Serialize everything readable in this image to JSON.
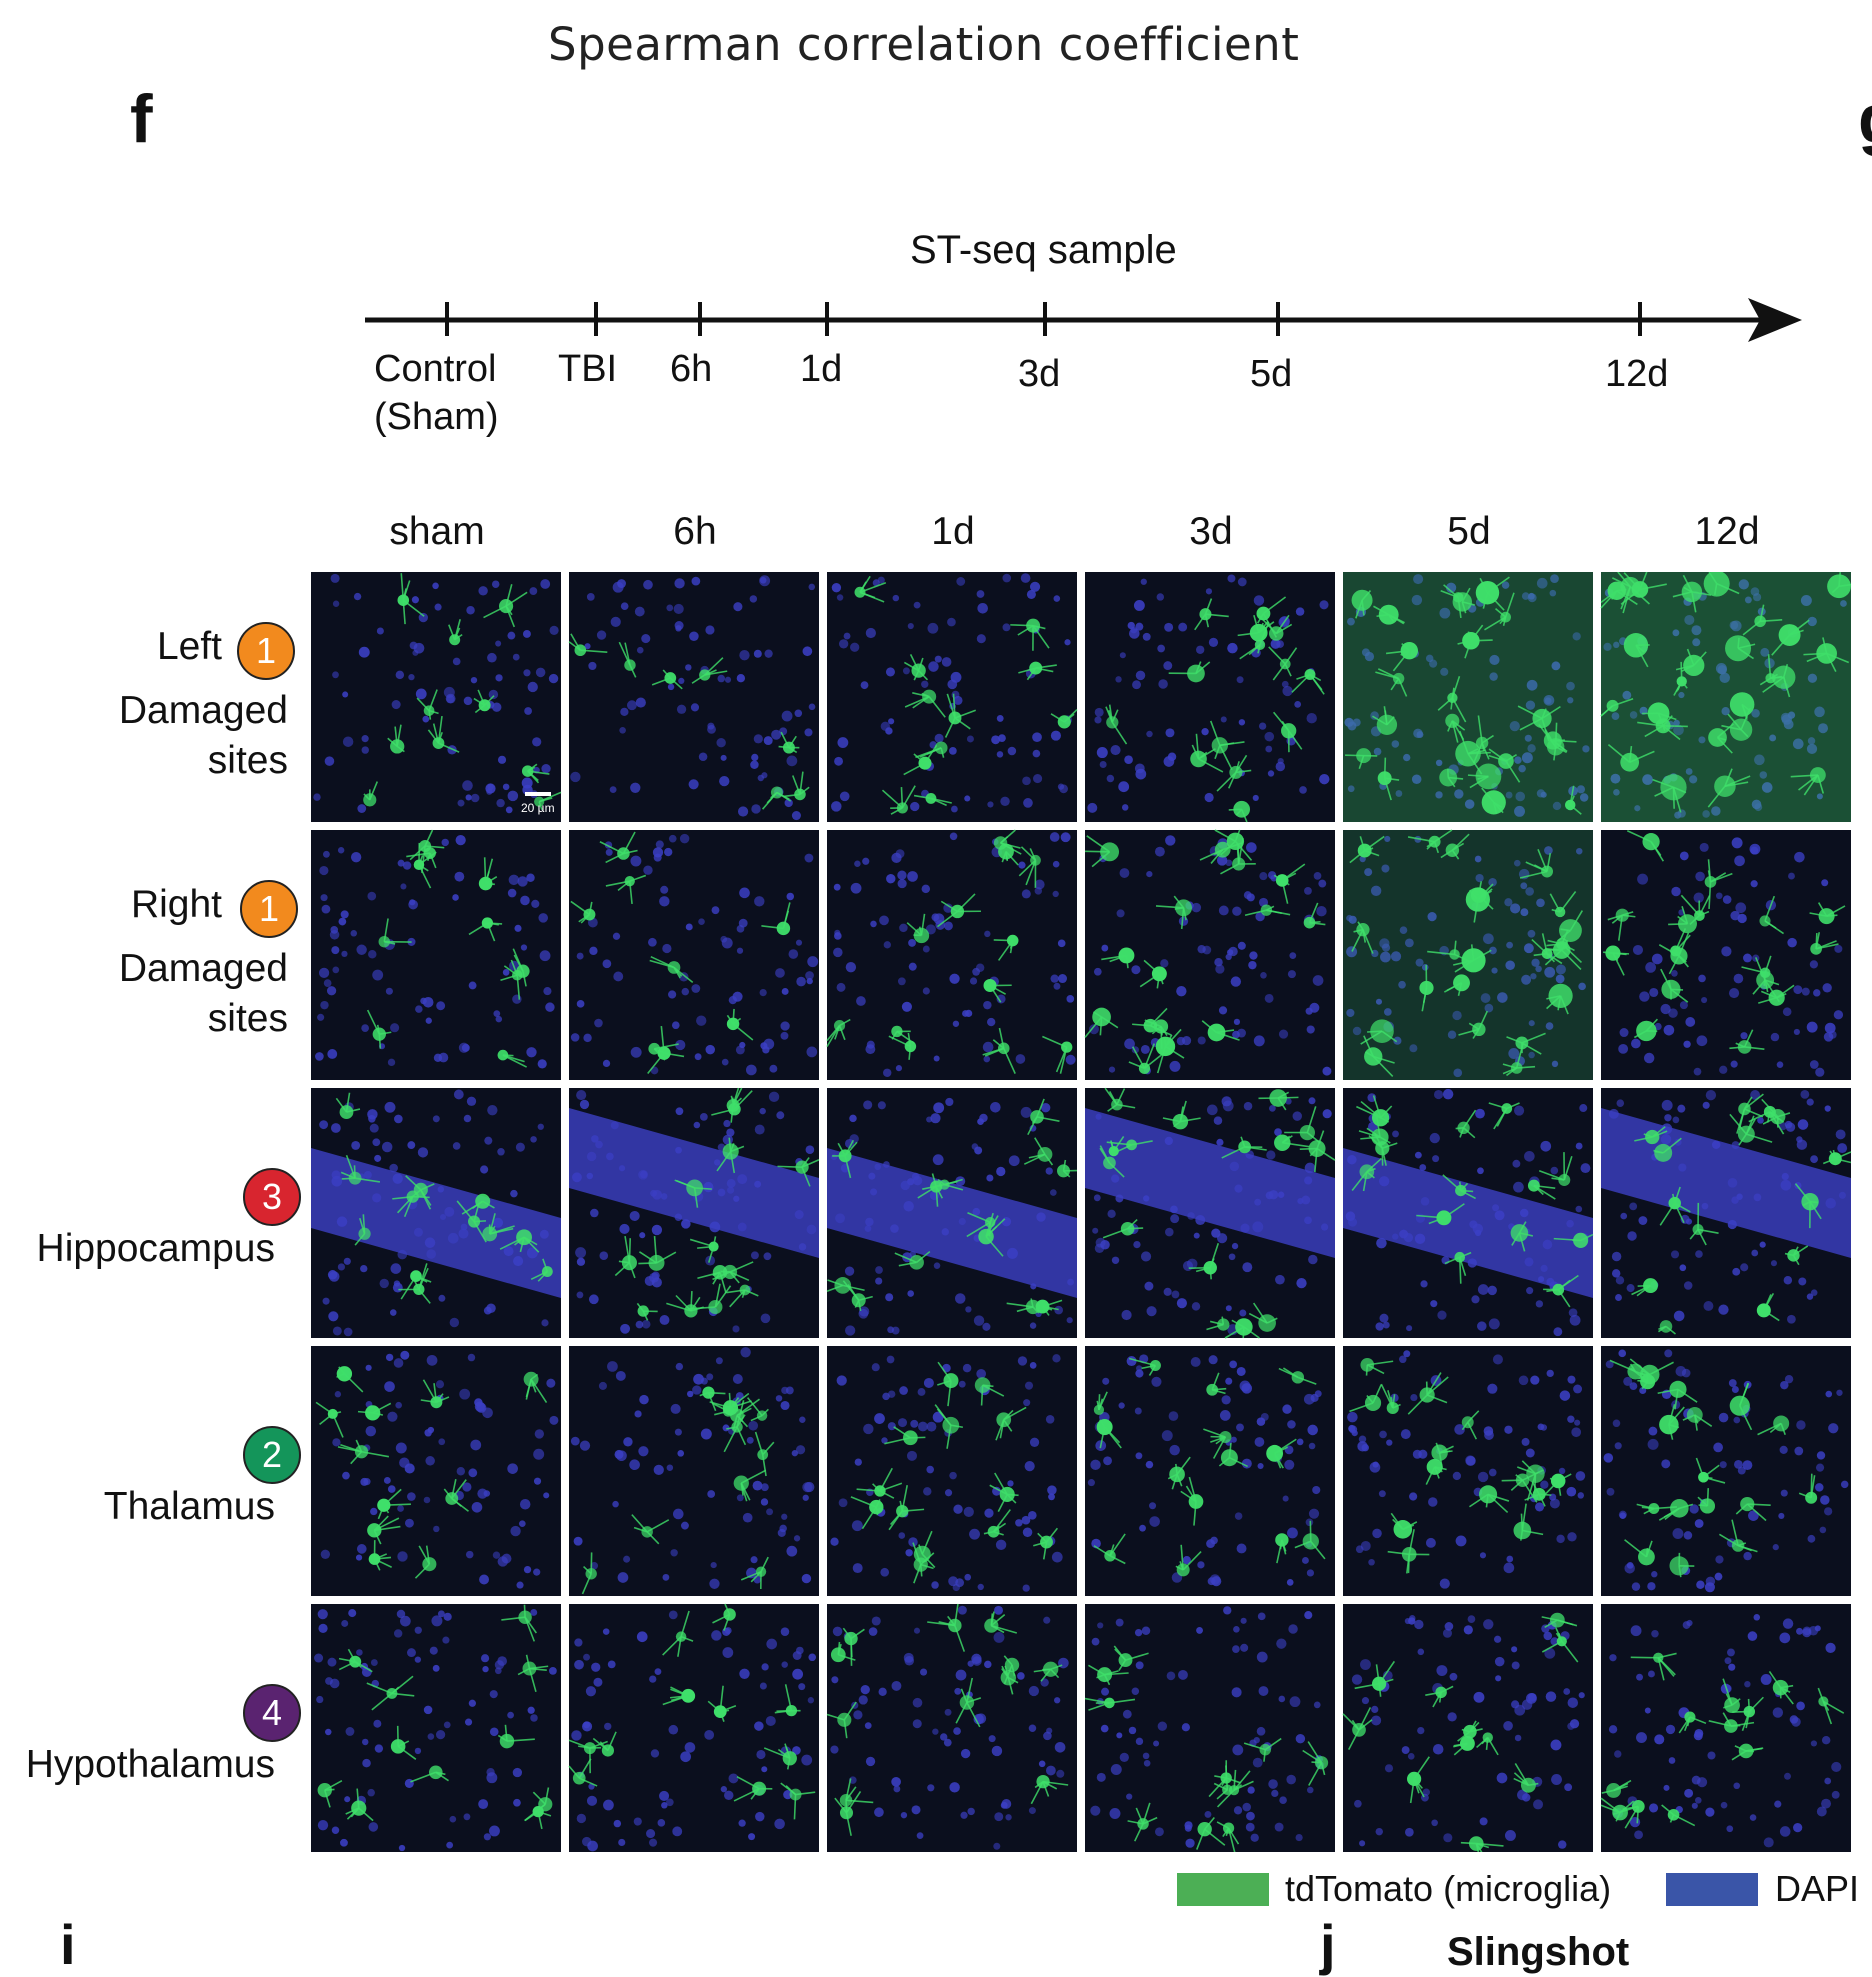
{
  "figure": {
    "heading": "Spearman correlation coefficient",
    "panel_letters": {
      "f": "f",
      "g_partial": "g",
      "i_partial": "i",
      "j_partial": "j"
    },
    "bottom_partial_text": "Slingshot"
  },
  "timeline": {
    "title": "ST-seq sample",
    "ticks": [
      {
        "label_line1": "Control",
        "label_line2": "(Sham)"
      },
      {
        "label_line1": "TBI",
        "label_line2": ""
      },
      {
        "label_line1": "6h",
        "label_line2": ""
      },
      {
        "label_line1": "1d",
        "label_line2": ""
      },
      {
        "label_line1": "3d",
        "label_line2": ""
      },
      {
        "label_line1": "5d",
        "label_line2": ""
      },
      {
        "label_line1": "12d",
        "label_line2": ""
      }
    ]
  },
  "grid": {
    "columns": [
      "sham",
      "6h",
      "1d",
      "3d",
      "5d",
      "12d"
    ],
    "rows": [
      {
        "line1": "Left",
        "line2": "Damaged",
        "line3": "sites",
        "badge": "1",
        "badge_color": "#F28A1E",
        "band": false
      },
      {
        "line1": "Right",
        "line2": "Damaged",
        "line3": "sites",
        "badge": "1",
        "badge_color": "#F28A1E",
        "band": false
      },
      {
        "line1": "",
        "line2": "Hippocampus",
        "line3": "",
        "badge": "3",
        "badge_color": "#D8252F",
        "band": true
      },
      {
        "line1": "",
        "line2": "Thalamus",
        "line3": "",
        "badge": "2",
        "badge_color": "#14955A",
        "band": false
      },
      {
        "line1": "",
        "line2": "Hypothalamus",
        "line3": "",
        "badge": "4",
        "badge_color": "#5A2370",
        "band": false
      }
    ],
    "intensity": [
      [
        0.25,
        0.12,
        0.3,
        0.45,
        0.9,
        0.95
      ],
      [
        0.25,
        0.2,
        0.35,
        0.55,
        0.8,
        0.6
      ],
      [
        0.35,
        0.45,
        0.4,
        0.5,
        0.45,
        0.45
      ],
      [
        0.3,
        0.3,
        0.4,
        0.45,
        0.5,
        0.6
      ],
      [
        0.3,
        0.3,
        0.35,
        0.3,
        0.3,
        0.35
      ]
    ],
    "scale_bar_label": "20 µm"
  },
  "legend": [
    {
      "label": "tdTomato (microglia)",
      "color": "#4CAF55"
    },
    {
      "label": "DAPI",
      "color": "#3A55A8"
    }
  ],
  "colors": {
    "tile_bg": "#0b0f1e",
    "nucleus": "#3b3fc4",
    "microglia": "#3fe06a"
  }
}
